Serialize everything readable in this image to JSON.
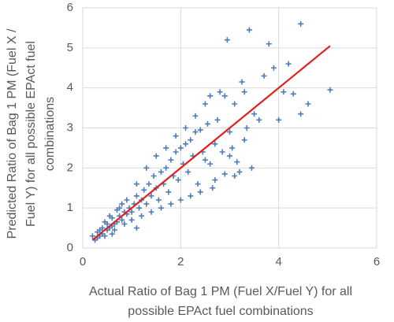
{
  "chart_data": {
    "type": "scatter",
    "xlabel": [
      "Actual Ratio of Bag 1 PM (Fuel X/Fuel Y) for all",
      "possible EPAct fuel combinations"
    ],
    "ylabel": [
      "Predicted Ratio of Bag 1 PM (Fuel X /",
      "Fuel Y) for all possible EPAct fuel",
      "combinations"
    ],
    "xlim": [
      0,
      6
    ],
    "ylim": [
      0,
      6
    ],
    "xticks": [
      0,
      2,
      4,
      6
    ],
    "yticks": [
      0,
      1,
      2,
      3,
      4,
      5,
      6
    ],
    "grid": true,
    "series": [
      {
        "color": "#4f7bb8",
        "x": [
          0.25,
          0.3,
          0.35,
          0.4,
          0.45,
          0.3,
          0.5,
          0.55,
          0.6,
          0.4,
          0.35,
          0.5,
          0.65,
          0.7,
          0.6,
          0.75,
          0.8,
          0.85,
          0.9,
          0.7,
          0.95,
          1.0,
          1.05,
          0.9,
          1.1,
          1.15,
          1.2,
          1.25,
          1.3,
          1.35,
          1.4,
          1.45,
          1.5,
          1.55,
          1.6,
          1.65,
          1.7,
          1.75,
          1.8,
          1.85,
          1.9,
          1.95,
          2.0,
          2.05,
          2.1,
          2.15,
          2.2,
          2.25,
          2.3,
          2.35,
          2.4,
          2.45,
          2.5,
          2.55,
          2.6,
          2.65,
          2.7,
          2.75,
          2.8,
          2.85,
          2.9,
          2.95,
          3.0,
          3.05,
          3.1,
          3.15,
          3.2,
          3.25,
          3.3,
          3.35,
          3.4,
          3.45,
          3.5,
          3.6,
          3.7,
          3.8,
          3.9,
          4.0,
          4.1,
          4.2,
          4.3,
          4.45,
          4.45,
          4.6,
          5.05,
          1.0,
          1.2,
          1.4,
          1.6,
          1.8,
          2.0,
          2.2,
          0.8,
          1.1,
          1.3,
          1.5,
          1.7,
          1.9,
          2.1,
          2.3,
          2.5,
          2.6,
          2.9,
          3.0,
          3.3,
          2.4,
          2.7,
          3.1,
          1.1,
          0.6,
          0.2,
          0.45,
          0.55,
          0.65,
          0.75,
          0.85
        ],
        "y": [
          0.2,
          0.25,
          0.3,
          0.35,
          0.3,
          0.4,
          0.45,
          0.5,
          0.55,
          0.5,
          0.45,
          0.6,
          0.6,
          0.65,
          0.75,
          0.8,
          0.7,
          0.9,
          0.85,
          0.95,
          1.0,
          0.9,
          1.1,
          1.2,
          1.3,
          1.0,
          1.2,
          1.45,
          1.1,
          1.6,
          1.3,
          1.8,
          1.5,
          1.2,
          1.9,
          1.6,
          2.0,
          1.4,
          2.2,
          1.8,
          2.4,
          1.7,
          2.5,
          2.1,
          2.6,
          1.9,
          2.7,
          2.3,
          2.9,
          1.6,
          2.95,
          2.4,
          2.2,
          3.1,
          2.1,
          1.5,
          2.6,
          3.2,
          3.9,
          2.4,
          1.85,
          5.2,
          2.3,
          2.5,
          3.6,
          2.15,
          1.9,
          4.15,
          2.7,
          3.0,
          5.45,
          2.0,
          3.35,
          3.2,
          4.3,
          5.1,
          4.5,
          3.2,
          3.9,
          4.6,
          3.85,
          3.35,
          5.6,
          3.6,
          3.95,
          0.7,
          0.8,
          0.9,
          1.0,
          1.1,
          1.2,
          1.3,
          1.1,
          1.6,
          2.0,
          2.3,
          2.5,
          2.8,
          3.0,
          3.3,
          3.6,
          3.8,
          3.8,
          2.9,
          3.9,
          1.4,
          1.7,
          1.8,
          0.5,
          0.35,
          0.3,
          0.65,
          0.8,
          0.45,
          1.0,
          0.6
        ]
      }
    ],
    "fit_line": {
      "color": "#e0201c",
      "x": [
        0.2,
        5.05
      ],
      "y": [
        0.2,
        5.05
      ]
    }
  }
}
